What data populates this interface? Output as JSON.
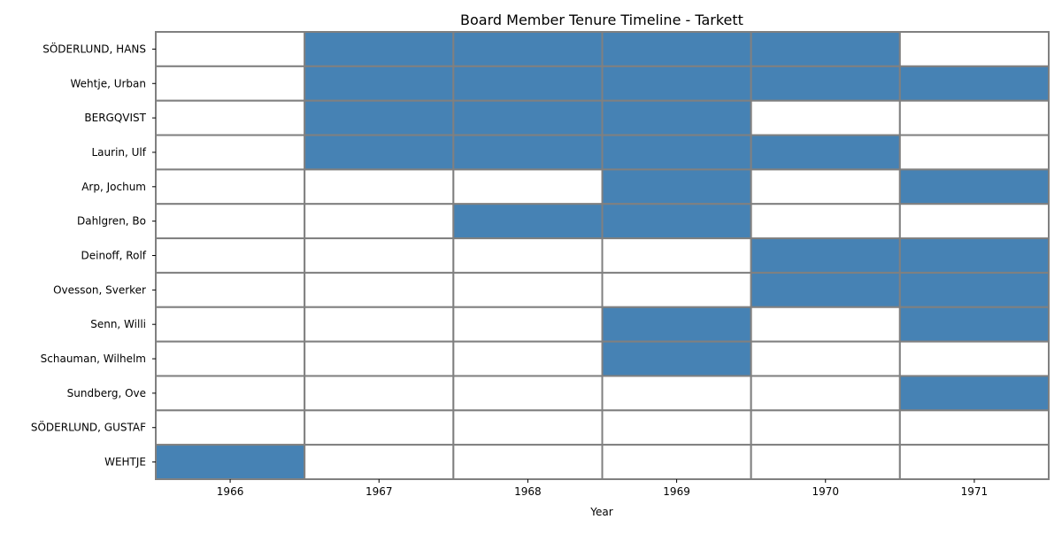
{
  "chart_data": {
    "type": "heatmap",
    "title": "Board Member Tenure Timeline - Tarkett",
    "xlabel": "Year",
    "ylabel": "",
    "x": [
      "1966",
      "1967",
      "1968",
      "1969",
      "1970",
      "1971"
    ],
    "rows": [
      {
        "label": "SÖDERLUND, HANS",
        "values": [
          0,
          1,
          1,
          1,
          1,
          0
        ]
      },
      {
        "label": "Wehtje, Urban",
        "values": [
          0,
          1,
          1,
          1,
          1,
          1
        ]
      },
      {
        "label": "BERGQVIST",
        "values": [
          0,
          1,
          1,
          1,
          0,
          0
        ]
      },
      {
        "label": "Laurin, Ulf",
        "values": [
          0,
          1,
          1,
          1,
          1,
          0
        ]
      },
      {
        "label": "Arp, Jochum",
        "values": [
          0,
          0,
          0,
          1,
          0,
          1
        ]
      },
      {
        "label": "Dahlgren, Bo",
        "values": [
          0,
          0,
          1,
          1,
          0,
          0
        ]
      },
      {
        "label": "Deinoff, Rolf",
        "values": [
          0,
          0,
          0,
          0,
          1,
          1
        ]
      },
      {
        "label": "Ovesson, Sverker",
        "values": [
          0,
          0,
          0,
          0,
          1,
          1
        ]
      },
      {
        "label": "Senn, Willi",
        "values": [
          0,
          0,
          0,
          1,
          0,
          1
        ]
      },
      {
        "label": "Schauman, Wilhelm",
        "values": [
          0,
          0,
          0,
          1,
          0,
          0
        ]
      },
      {
        "label": "Sundberg, Ove",
        "values": [
          0,
          0,
          0,
          0,
          0,
          1
        ]
      },
      {
        "label": "SÖDERLUND, GUSTAF",
        "values": [
          0,
          0,
          0,
          0,
          0,
          0
        ]
      },
      {
        "label": "WEHTJE",
        "values": [
          1,
          0,
          0,
          0,
          0,
          0
        ]
      }
    ],
    "colors": {
      "active": "#4682b4",
      "inactive": "#ffffff",
      "grid": "#808080"
    },
    "grid": true,
    "legend": "none"
  }
}
